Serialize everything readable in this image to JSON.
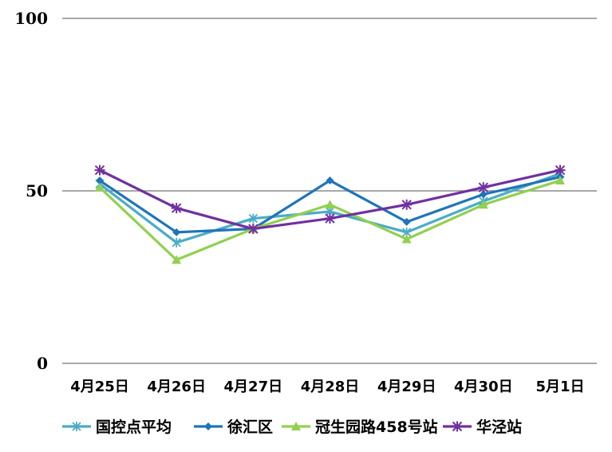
{
  "chart_data": {
    "type": "line",
    "title": "",
    "xlabel": "",
    "ylabel": "",
    "ylim": [
      0,
      100
    ],
    "yticks": [
      "0",
      "50",
      "100"
    ],
    "categories": [
      "4月25日",
      "4月26日",
      "4月27日",
      "4月28日",
      "4月29日",
      "4月30日",
      "5月1日"
    ],
    "grid": true,
    "legend_position": "bottom",
    "series": [
      {
        "name": "国控点平均",
        "color": "#4bacc6",
        "marker": "star-icon",
        "values": [
          52,
          35,
          42,
          44,
          38,
          47,
          55
        ]
      },
      {
        "name": "徐汇区",
        "color": "#1f75b7",
        "marker": "diamond-icon",
        "values": [
          53,
          38,
          39,
          53,
          41,
          49,
          54
        ]
      },
      {
        "name": "冠生园路458号站",
        "color": "#92d050",
        "marker": "triangle-icon",
        "values": [
          51,
          30,
          39,
          46,
          36,
          46,
          53
        ]
      },
      {
        "name": "华泾站",
        "color": "#7030a0",
        "marker": "asterisk-icon",
        "values": [
          56,
          45,
          39,
          42,
          46,
          51,
          56
        ]
      }
    ]
  }
}
